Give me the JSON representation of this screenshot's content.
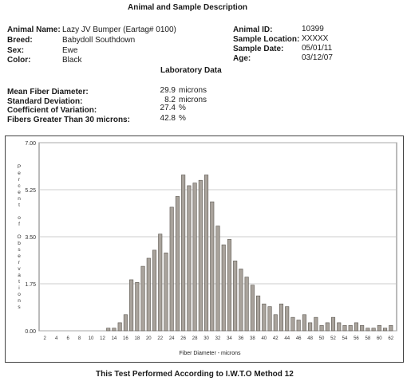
{
  "header": {
    "title": "Animal and Sample Description"
  },
  "animal": {
    "name_label": "Animal Name:",
    "name_value": "Lazy JV Bumper (Eartag# 0100)",
    "breed_label": "Breed:",
    "breed_value": "Babydoll Southdown",
    "sex_label": "Sex:",
    "sex_value": "Ewe",
    "color_label": "Color:",
    "color_value": "Black",
    "id_label": "Animal ID:",
    "id_value": "10399",
    "location_label": "Sample Location:",
    "location_value": "XXXXX",
    "date_label": "Sample Date:",
    "date_value": "05/01/11",
    "age_label": "Age:",
    "age_value": "03/12/07"
  },
  "lab": {
    "title": "Laboratory Data",
    "mfd_label": "Mean Fiber Diameter:",
    "mfd_value": "29.9",
    "mfd_unit": "microns",
    "sd_label": "Standard Deviation:",
    "sd_value": "8.2",
    "sd_unit": "microns",
    "cv_label": "Coefficient of Variation:",
    "cv_value": "27.4",
    "cv_unit": "%",
    "fg30_label": "Fibers Greater Than 30 microns:",
    "fg30_value": "42.8",
    "fg30_unit": "%"
  },
  "chart_data": {
    "type": "bar",
    "xlabel": "Fiber Diameter - microns",
    "ylabel": "Percent of Observations",
    "ylim": [
      0,
      7
    ],
    "yticks": [
      "0.00",
      "1.75",
      "3.50",
      "5.25",
      "7.00"
    ],
    "xticks": [
      "2",
      "4",
      "6",
      "8",
      "10",
      "12",
      "14",
      "16",
      "18",
      "20",
      "22",
      "24",
      "26",
      "28",
      "30",
      "32",
      "34",
      "36",
      "38",
      "40",
      "42",
      "44",
      "46",
      "48",
      "50",
      "52",
      "54",
      "56",
      "58",
      "60",
      "62"
    ],
    "x": [
      13,
      14,
      15,
      16,
      17,
      18,
      19,
      20,
      21,
      22,
      23,
      24,
      25,
      26,
      27,
      28,
      29,
      30,
      31,
      32,
      33,
      34,
      35,
      36,
      37,
      38,
      39,
      40,
      41,
      42,
      43,
      44,
      45,
      46,
      47,
      48,
      49,
      50,
      51,
      52,
      53,
      54,
      55,
      56,
      57,
      58,
      59,
      60,
      61,
      62
    ],
    "values": [
      0.1,
      0.1,
      0.3,
      0.6,
      1.9,
      1.8,
      2.4,
      2.7,
      3.0,
      3.6,
      2.9,
      4.6,
      5.0,
      5.8,
      5.4,
      5.5,
      5.6,
      5.8,
      4.8,
      3.9,
      3.2,
      3.4,
      2.6,
      2.3,
      2.0,
      1.7,
      1.3,
      1.0,
      0.9,
      0.6,
      1.0,
      0.9,
      0.5,
      0.4,
      0.6,
      0.3,
      0.5,
      0.2,
      0.3,
      0.5,
      0.3,
      0.2,
      0.2,
      0.3,
      0.2,
      0.1,
      0.1,
      0.2,
      0.1,
      0.2
    ]
  },
  "footer": {
    "text": "This Test Performed According to I.W.T.O Method 12"
  }
}
